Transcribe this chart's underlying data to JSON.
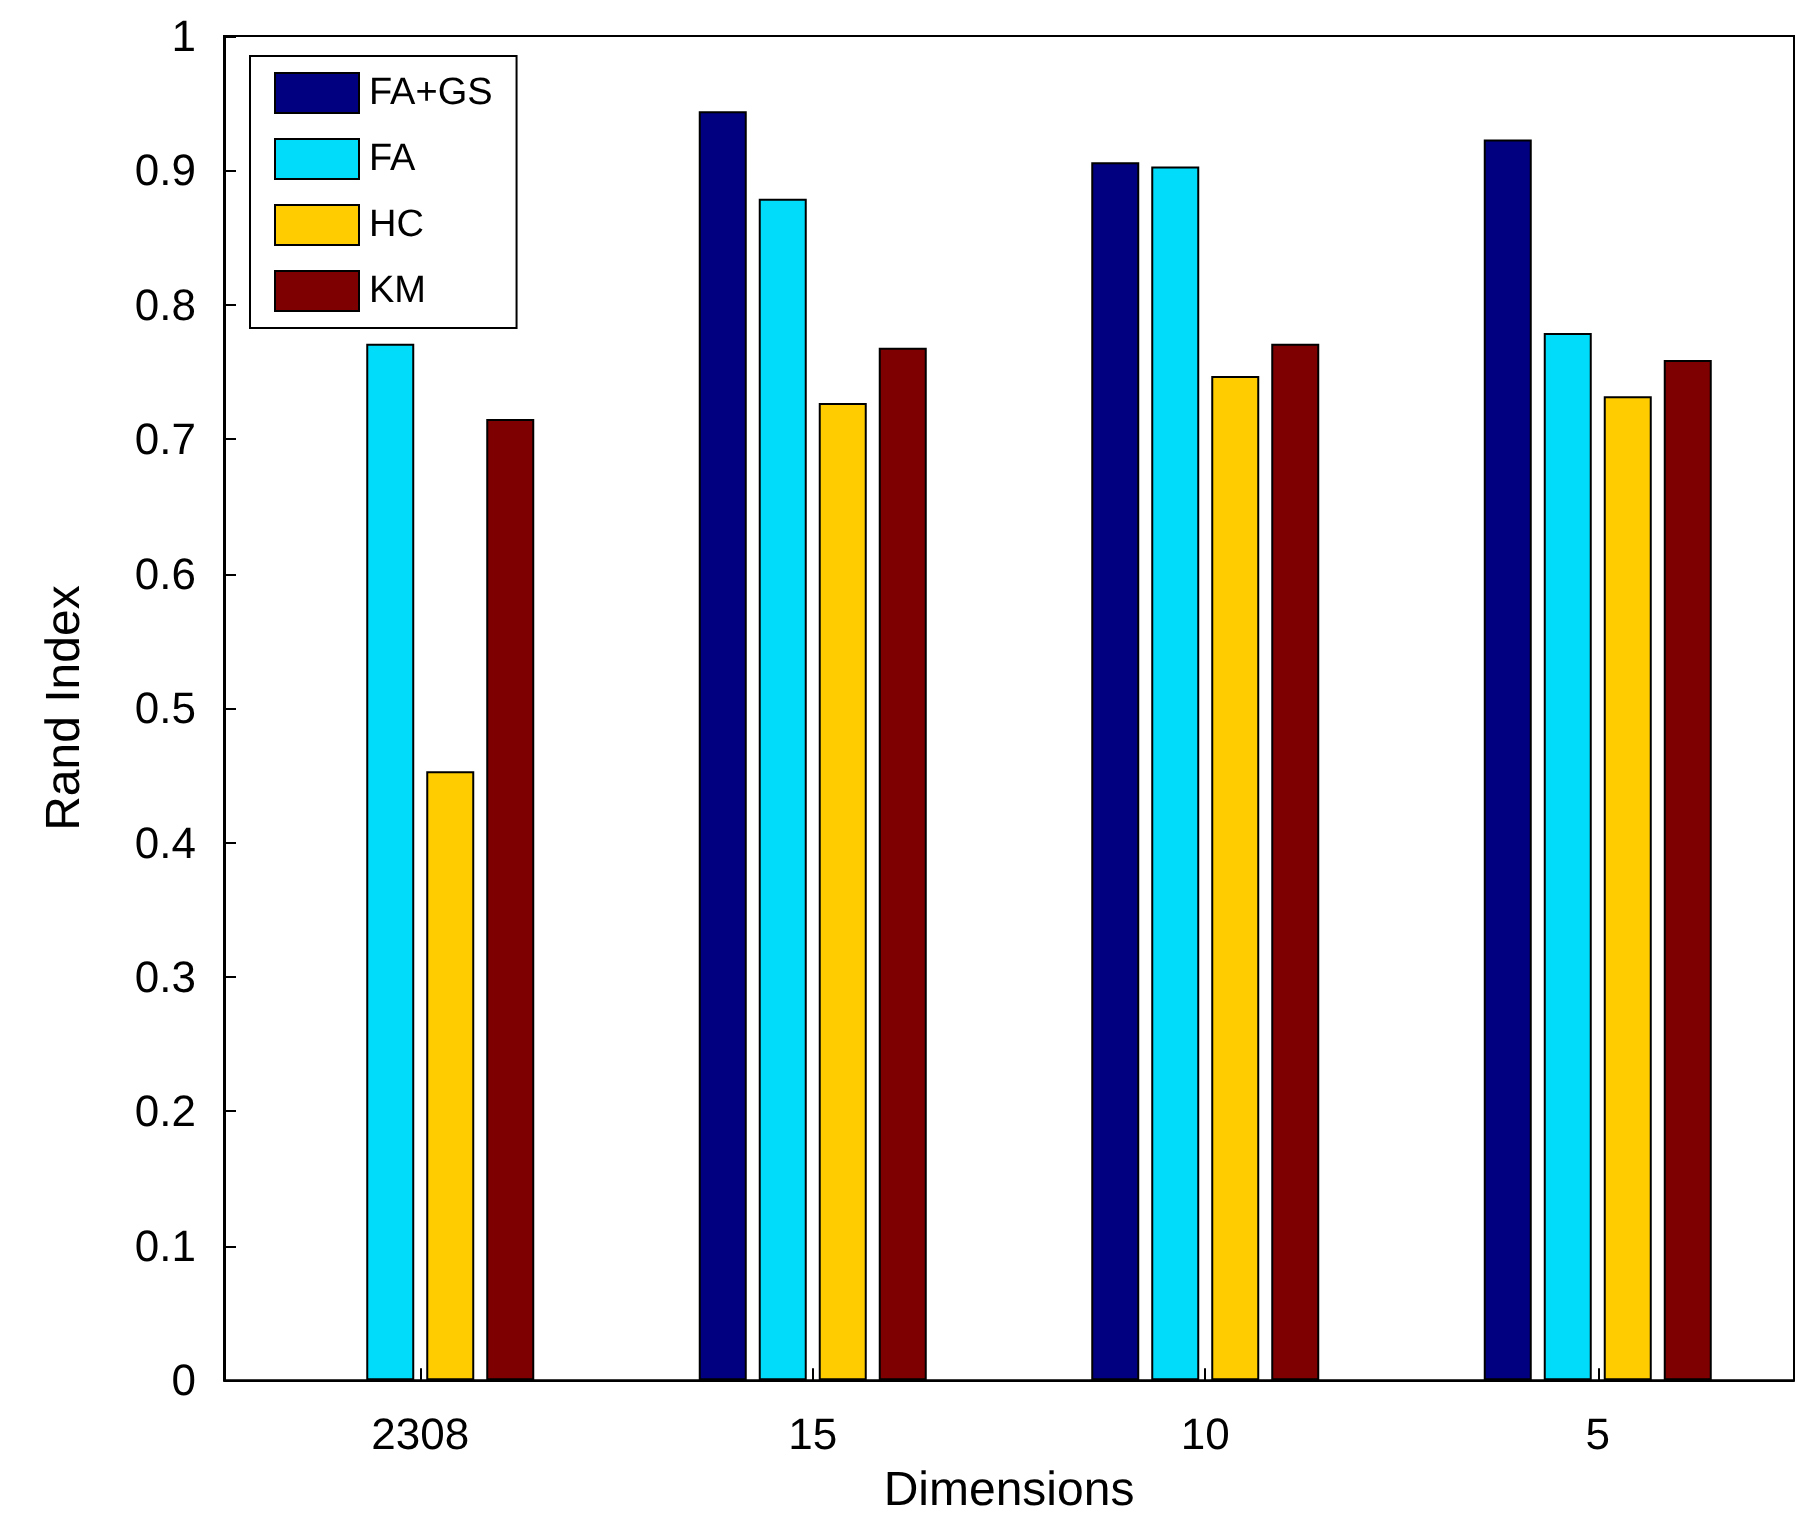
{
  "chart_data": {
    "type": "bar",
    "xlabel": "Dimensions",
    "ylabel": "Rand Index",
    "categories": [
      "2308",
      "15",
      "10",
      "5"
    ],
    "series": [
      {
        "name": "FA+GS",
        "color": "#000080",
        "values": [
          null,
          0.944,
          0.906,
          0.923
        ]
      },
      {
        "name": "FA",
        "color": "#00dcfa",
        "values": [
          0.771,
          0.879,
          0.903,
          0.779
        ]
      },
      {
        "name": "HC",
        "color": "#ffcc00",
        "values": [
          0.453,
          0.727,
          0.747,
          0.732
        ]
      },
      {
        "name": "KM",
        "color": "#7f0000",
        "values": [
          0.715,
          0.768,
          0.771,
          0.759
        ]
      }
    ],
    "ylim": [
      0,
      1
    ],
    "yticks": [
      0,
      0.1,
      0.2,
      0.3,
      0.4,
      0.5,
      0.6,
      0.7,
      0.8,
      0.9,
      1
    ],
    "grid": false,
    "legend": "top left"
  }
}
